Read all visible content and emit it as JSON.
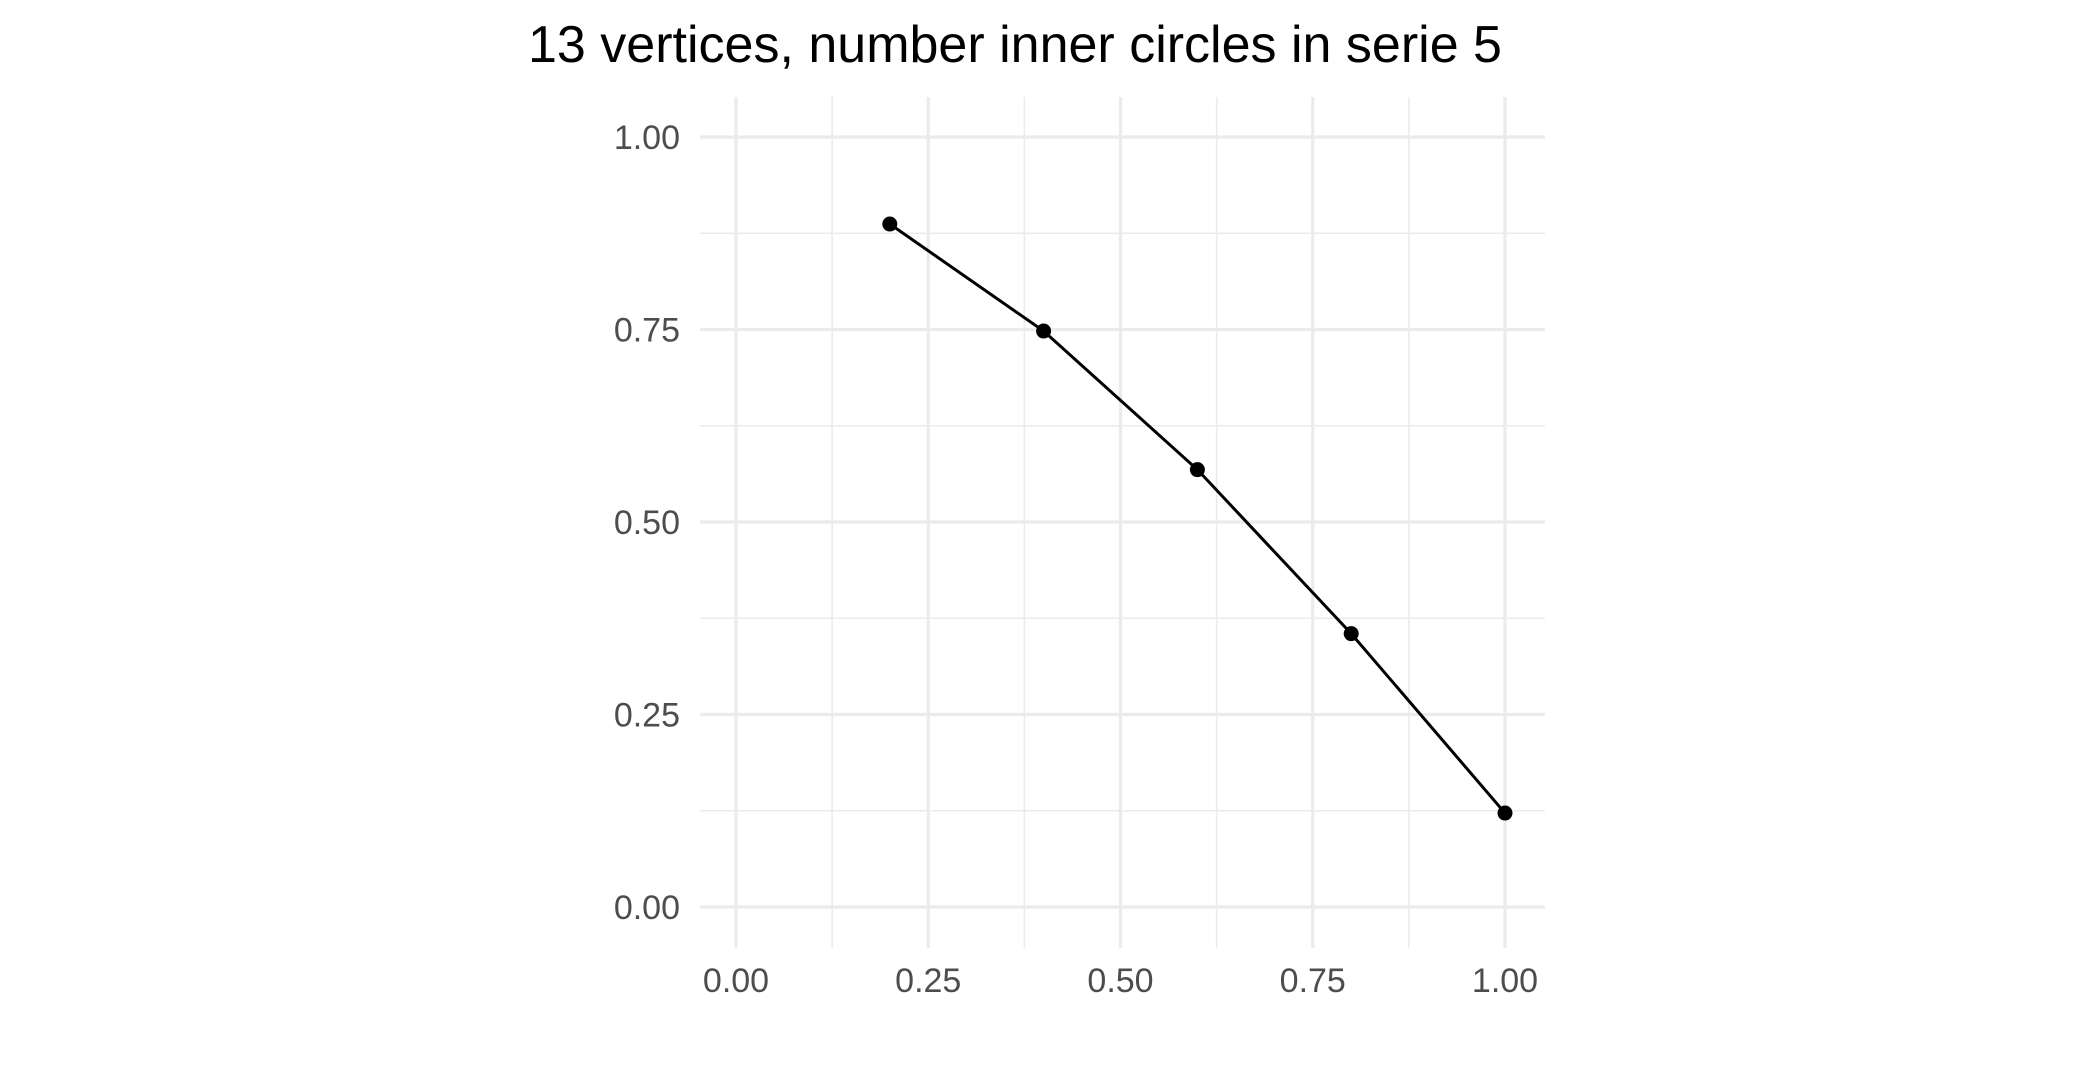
{
  "chart_data": {
    "type": "line",
    "title": "13 vertices, number inner circles in serie 5",
    "xlabel": "",
    "ylabel": "",
    "xlim": [
      0,
      1
    ],
    "ylim": [
      0,
      1
    ],
    "x_ticks": [
      0,
      0.25,
      0.5,
      0.75,
      1
    ],
    "y_ticks": [
      0,
      0.25,
      0.5,
      0.75,
      1
    ],
    "x_tick_labels": [
      "0.00",
      "0.25",
      "0.50",
      "0.75",
      "1.00"
    ],
    "y_tick_labels": [
      "0.00",
      "0.25",
      "0.50",
      "0.75",
      "1.00"
    ],
    "grid": true,
    "legend": "none",
    "series": [
      {
        "color": "#000000",
        "x": [
          0.2,
          0.4,
          0.6,
          0.8,
          1.0
        ],
        "y": [
          0.887,
          0.748,
          0.568,
          0.355,
          0.122
        ]
      }
    ]
  }
}
